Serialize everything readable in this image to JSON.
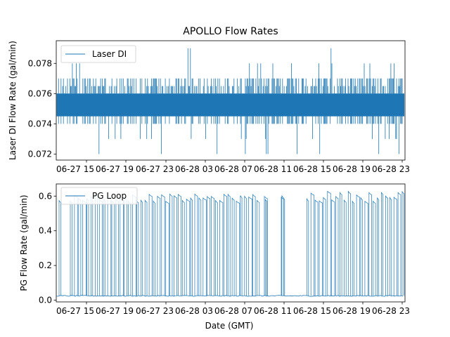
{
  "chart_data": [
    {
      "type": "line",
      "title": "APOLLO Flow Rates",
      "xlabel": "",
      "ylabel": "Laser DI Flow Rate (gal/min)",
      "ylim": [
        0.0716,
        0.0795
      ],
      "yticks": [
        0.072,
        0.074,
        0.076,
        0.078
      ],
      "ytick_labels": [
        "0.072",
        "0.074",
        "0.076",
        "0.078"
      ],
      "xtick_labels": [
        "06-27 15",
        "06-27 19",
        "06-27 23",
        "06-28 03",
        "06-28 07",
        "06-28 11",
        "06-28 15",
        "06-28 19",
        "06-28 23"
      ],
      "legend": {
        "position": "top-left",
        "entries": [
          "Laser DI"
        ]
      },
      "series": [
        {
          "name": "Laser DI",
          "color": "#1f77b4",
          "pattern": "dense noise between 0.074 and 0.077, spikes to 0.072 and 0.079",
          "base_low": 0.0745,
          "base_high": 0.076,
          "outer_low": 0.074,
          "outer_high": 0.077,
          "min": 0.072,
          "max": 0.079
        }
      ]
    },
    {
      "type": "line",
      "title": "",
      "xlabel": "Date (GMT)",
      "ylabel": "PG Flow Rate (gal/min)",
      "ylim": [
        -0.01,
        0.67
      ],
      "yticks": [
        0.0,
        0.2,
        0.4,
        0.6
      ],
      "ytick_labels": [
        "0.0",
        "0.2",
        "0.4",
        "0.6"
      ],
      "xtick_labels": [
        "06-27 15",
        "06-27 19",
        "06-27 23",
        "06-28 03",
        "06-28 07",
        "06-28 11",
        "06-28 15",
        "06-28 19",
        "06-28 23"
      ],
      "legend": {
        "position": "top-left",
        "entries": [
          "PG Loop"
        ]
      },
      "series": [
        {
          "name": "PG Loop",
          "color": "#1f77b4",
          "pattern": "baseline ~0.025 with periodic pulses to ~0.58-0.63",
          "baseline": 0.025,
          "pulse_height_min": 0.57,
          "pulse_height_max": 0.63
        }
      ]
    }
  ]
}
